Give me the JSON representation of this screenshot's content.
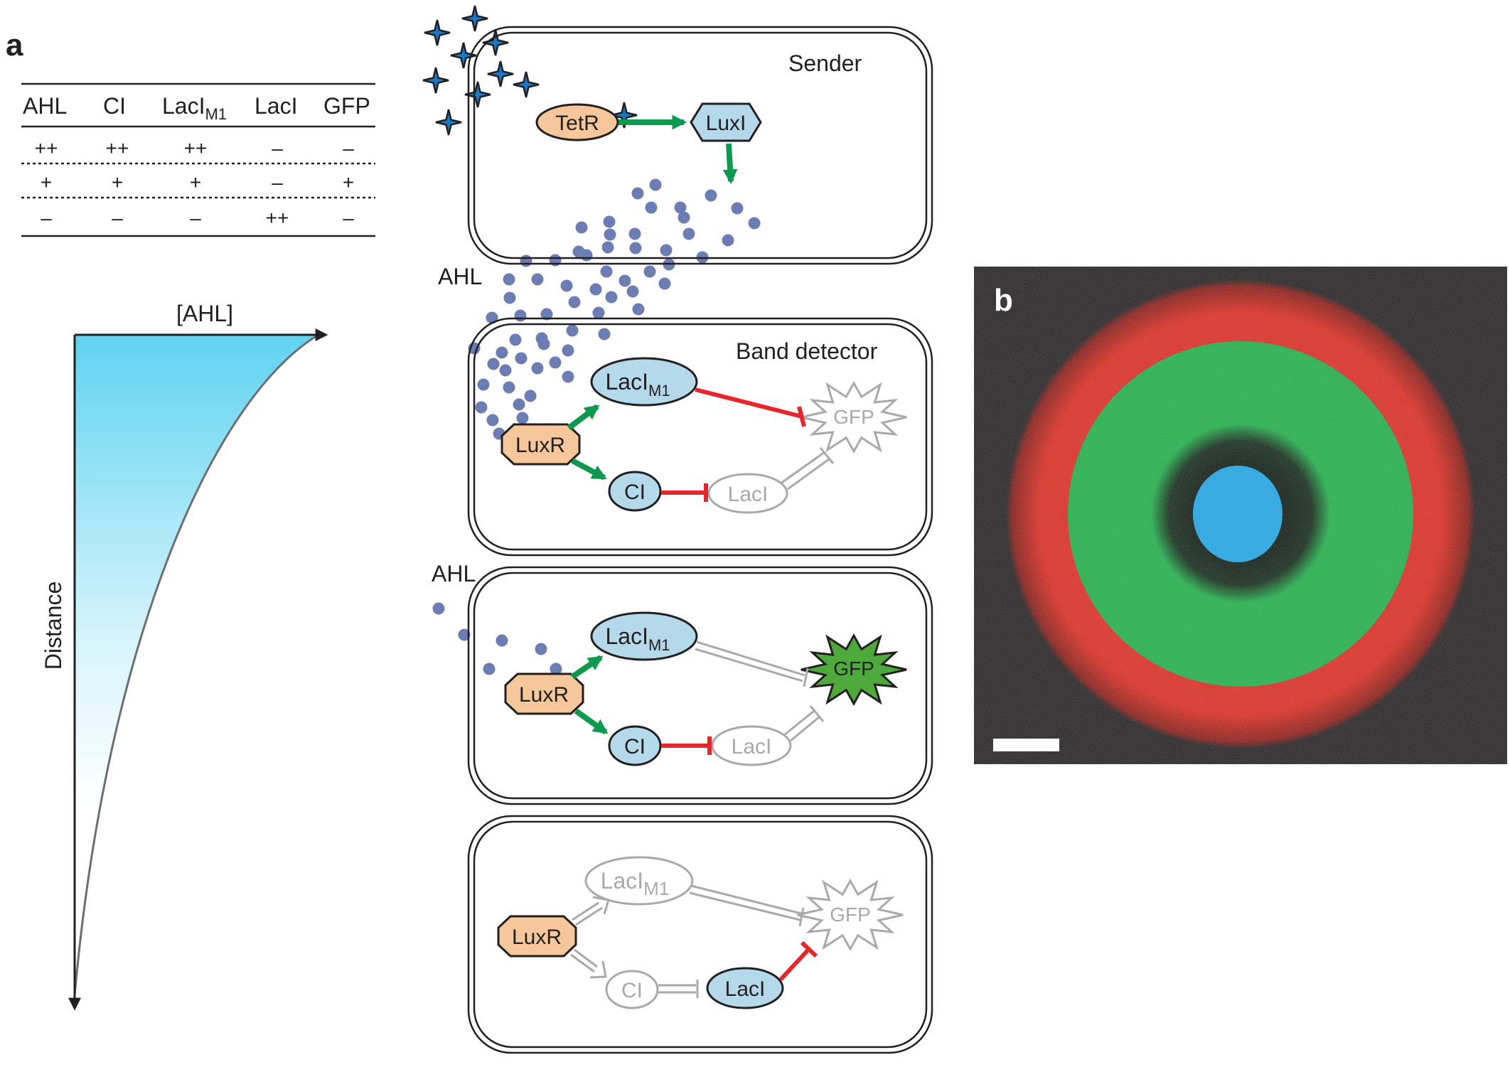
{
  "panel_labels": {
    "a": "a",
    "b": "b"
  },
  "table": {
    "headers": [
      "AHL",
      "CI",
      "LacI",
      "LacI",
      "GFP"
    ],
    "header_subscripts": [
      "",
      "",
      "M1",
      "",
      ""
    ],
    "rows": [
      [
        "++",
        "++",
        "++",
        "–",
        "–"
      ],
      [
        "+",
        "+",
        "+",
        "–",
        "+"
      ],
      [
        "–",
        "–",
        "–",
        "++",
        "–"
      ]
    ]
  },
  "gradient_plot": {
    "x_label": "[AHL]",
    "y_label": "Distance"
  },
  "ahl_labels": [
    "AHL",
    "AHL"
  ],
  "cells": {
    "sender": {
      "title": "Sender",
      "tetr": "TetR",
      "luxi": "LuxI"
    },
    "band_detector": {
      "title": "Band detector"
    },
    "nodes": {
      "laci_m1": "LacI",
      "laci_m1_sub": "M1",
      "luxr": "LuxR",
      "ci": "CI",
      "laci": "LacI",
      "gfp": "GFP"
    }
  },
  "colors": {
    "activation_arrow": "#0e9a4e",
    "repression": "#e5262b",
    "inactive": "#a7a9ac",
    "protein_blue": "#b3d9ea",
    "protein_orange": "#f6c79b",
    "ahl_dot": "#6b7db3",
    "gfp_on": "#4ea93c",
    "microscopy_red": "#e02a1f",
    "microscopy_green": "#1fb24a",
    "microscopy_blue": "#1ea8e8",
    "gradient_top": "#5fd3f0"
  }
}
